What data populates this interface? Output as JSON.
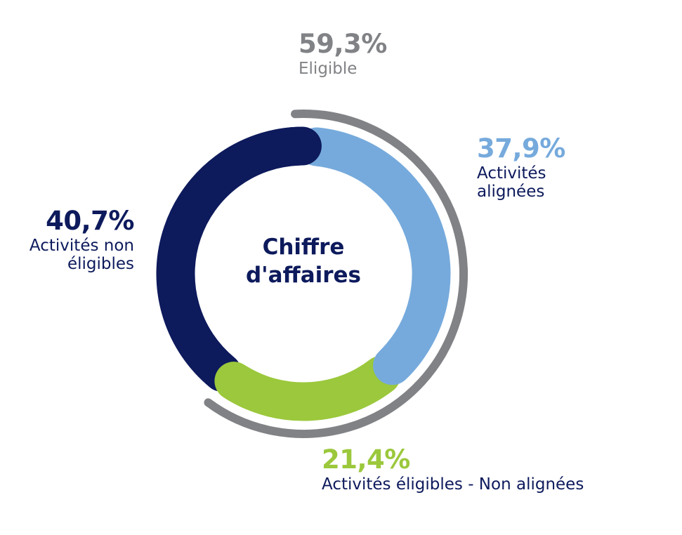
{
  "chart_data": {
    "type": "pie",
    "subtype": "donut",
    "title": "Chiffre d'affaires",
    "slices": [
      {
        "label": "Activités alignées",
        "value": 37.9,
        "display": "37,9%",
        "color": "#76aadc"
      },
      {
        "label": "Activités éligibles - Non alignées",
        "value": 21.4,
        "display": "21,4%",
        "color": "#9bc83c"
      },
      {
        "label": "Activités non éligibles",
        "value": 40.7,
        "display": "40,7%",
        "color": "#0d1a5c"
      }
    ],
    "group_arc": {
      "label": "Eligible",
      "value": 59.3,
      "display": "59,3%",
      "color": "#808285",
      "spans": [
        "Activités alignées",
        "Activités éligibles - Non alignées"
      ]
    }
  },
  "center_label": {
    "line1": "Chiffre",
    "line2": "d'affaires"
  },
  "labels": {
    "eligible": {
      "pct": "59,3%",
      "line1": "Eligible"
    },
    "aligned": {
      "pct": "37,9%",
      "line1": "Activités",
      "line2": "alignées"
    },
    "non_eligible": {
      "pct": "40,7%",
      "line1": "Activités non",
      "line2": "éligibles"
    },
    "eligible_non_aligned": {
      "pct": "21,4%",
      "line1": "Activités éligibles - Non alignées"
    }
  }
}
